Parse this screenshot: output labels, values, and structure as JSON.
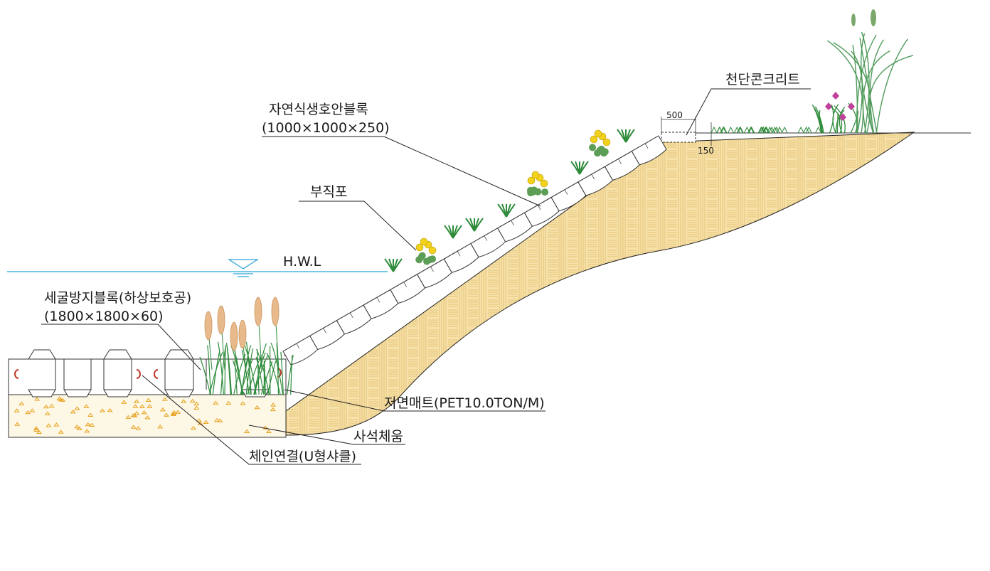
{
  "labels": {
    "natural_block_name": "자연식생호안블록",
    "natural_block_size": "(1000×1000×250)",
    "nonwoven": "부직포",
    "hwl": "H.W.L",
    "scour_block_name": "세굴방지블록(하상보호공)",
    "scour_block_size": "(1800×1800×60)",
    "bottom_mat": "저면매트(PET10.0TON/M)",
    "gravel_fill": "사석체움",
    "chain": "체인연결(U형샤클)",
    "crest_concrete": "천단콘크리트",
    "dim_width": "500",
    "dim_height": "150"
  },
  "colors": {
    "soil": "#f5dca0",
    "soil_line": "#e2bd6a",
    "water": "#29a3d6",
    "mat": "#c0392b",
    "plant": "#2e8b3a",
    "flower": "#f2d21a",
    "reed": "#e8b98a",
    "iris": "#c0409a"
  }
}
